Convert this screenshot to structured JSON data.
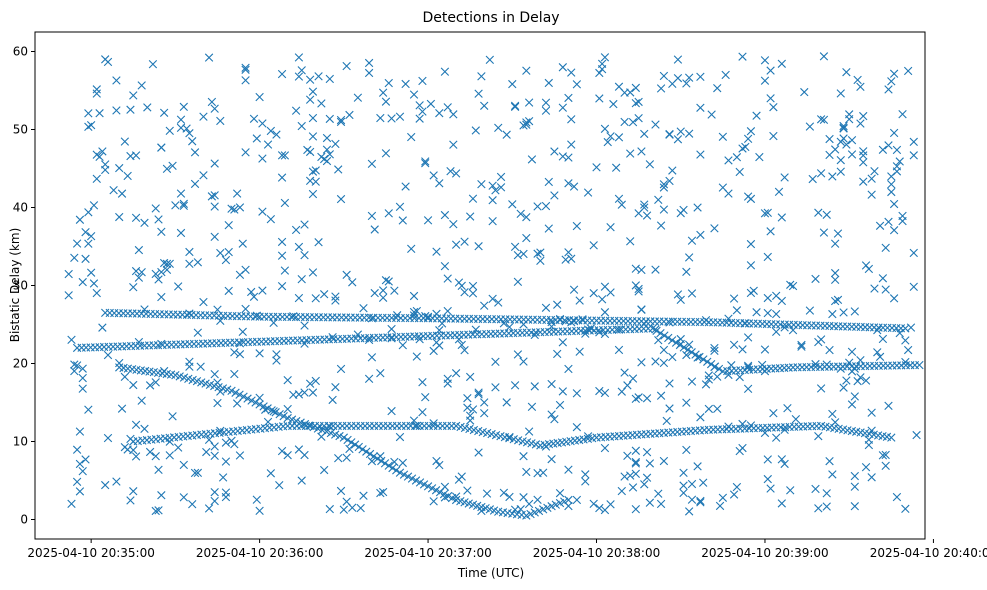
{
  "chart_data": {
    "type": "scatter",
    "title": "Detections in Delay",
    "xlabel": "Time (UTC)",
    "ylabel": "Bistatic Delay (km)",
    "marker": "x",
    "color": "#1f77b4",
    "grid": false,
    "legend": "none",
    "xlim": [
      "2025-04-10 20:34:40",
      "2025-04-10 20:39:57"
    ],
    "ylim": [
      -2.5,
      62.5
    ],
    "x_ticks": [
      "2025-04-10 20:35:00",
      "2025-04-10 20:36:00",
      "2025-04-10 20:37:00",
      "2025-04-10 20:38:00",
      "2025-04-10 20:39:00",
      "2025-04-10 20:40:00"
    ],
    "y_ticks": [
      0,
      10,
      20,
      30,
      40,
      50,
      60
    ],
    "tracks": [
      {
        "description": "decreasing track",
        "points": [
          [
            "2025-04-10 20:35:10",
            19.5
          ],
          [
            "2025-04-10 20:35:30",
            18.5
          ],
          [
            "2025-04-10 20:35:50",
            16.5
          ],
          [
            "2025-04-10 20:36:10",
            13.0
          ],
          [
            "2025-04-10 20:36:30",
            10.5
          ],
          [
            "2025-04-10 20:36:50",
            6.0
          ],
          [
            "2025-04-10 20:37:10",
            2.5
          ],
          [
            "2025-04-10 20:37:25",
            1.0
          ],
          [
            "2025-04-10 20:37:35",
            0.5
          ],
          [
            "2025-04-10 20:37:50",
            2.5
          ]
        ]
      },
      {
        "description": "track near 26 km",
        "points": [
          [
            "2025-04-10 20:35:05",
            26.5
          ],
          [
            "2025-04-10 20:36:00",
            26.0
          ],
          [
            "2025-04-10 20:37:00",
            25.8
          ],
          [
            "2025-04-10 20:38:00",
            25.5
          ],
          [
            "2025-04-10 20:38:40",
            25.3
          ],
          [
            "2025-04-10 20:39:50",
            24.5
          ]
        ]
      },
      {
        "description": "track near 10–12 km",
        "points": [
          [
            "2025-04-10 20:35:15",
            10.0
          ],
          [
            "2025-04-10 20:36:10",
            12.0
          ],
          [
            "2025-04-10 20:37:10",
            12.0
          ],
          [
            "2025-04-10 20:37:40",
            9.5
          ],
          [
            "2025-04-10 20:38:00",
            10.5
          ],
          [
            "2025-04-10 20:38:40",
            11.5
          ],
          [
            "2025-04-10 20:39:20",
            12.0
          ],
          [
            "2025-04-10 20:39:45",
            10.5
          ]
        ]
      },
      {
        "description": "track near 19–24 km",
        "points": [
          [
            "2025-04-10 20:34:55",
            22.0
          ],
          [
            "2025-04-10 20:38:20",
            24.5
          ],
          [
            "2025-04-10 20:38:45",
            19.0
          ],
          [
            "2025-04-10 20:39:10",
            19.5
          ],
          [
            "2025-04-10 20:39:55",
            19.8
          ]
        ]
      }
    ]
  }
}
